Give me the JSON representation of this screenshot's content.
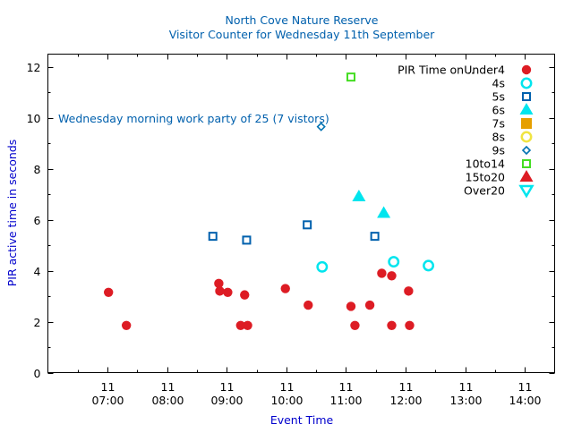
{
  "chart_data": {
    "type": "scatter",
    "title": "North Cove Nature Reserve",
    "subtitle": "Visitor Counter for Wednesday 11th September",
    "xlabel": "Event Time",
    "ylabel": "PIR active time in seconds",
    "annotation": "Wednesday morning work party of 25 (7 vistors)",
    "legend_title": "PIR Time on .. ",
    "legend_position": "top-right",
    "grid": false,
    "xlim": [
      "06:00",
      "14:30"
    ],
    "ylim": [
      0,
      12.5
    ],
    "x_ticks": [
      {
        "day": "11",
        "time": "07:00"
      },
      {
        "day": "11",
        "time": "08:00"
      },
      {
        "day": "11",
        "time": "09:00"
      },
      {
        "day": "11",
        "time": "10:00"
      },
      {
        "day": "11",
        "time": "11:00"
      },
      {
        "day": "11",
        "time": "12:00"
      },
      {
        "day": "11",
        "time": "13:00"
      },
      {
        "day": "11",
        "time": "14:00"
      }
    ],
    "y_ticks": [
      0,
      2,
      4,
      6,
      8,
      10,
      12
    ],
    "series": [
      {
        "name": "Under4",
        "marker": "circle-filled",
        "color": "#dd1c24",
        "points": [
          [
            "07:01",
            3.15
          ],
          [
            "07:19",
            1.85
          ],
          [
            "08:52",
            3.5
          ],
          [
            "08:53",
            3.2
          ],
          [
            "09:01",
            3.15
          ],
          [
            "09:14",
            1.85
          ],
          [
            "09:18",
            3.05
          ],
          [
            "09:21",
            1.85
          ],
          [
            "09:59",
            3.3
          ],
          [
            "10:22",
            2.65
          ],
          [
            "11:05",
            2.6
          ],
          [
            "11:09",
            1.85
          ],
          [
            "11:24",
            2.65
          ],
          [
            "11:36",
            3.9
          ],
          [
            "11:46",
            1.85
          ],
          [
            "11:46",
            3.8
          ],
          [
            "12:03",
            3.2
          ],
          [
            "12:04",
            1.85
          ]
        ]
      },
      {
        "name": "4s",
        "marker": "circle-open",
        "color": "#00e5ee",
        "points": [
          [
            "10:36",
            4.15
          ],
          [
            "11:48",
            4.35
          ],
          [
            "12:23",
            4.2
          ]
        ]
      },
      {
        "name": "5s",
        "marker": "square-open",
        "color": "#0060ad",
        "points": [
          [
            "08:46",
            5.35
          ],
          [
            "09:20",
            5.2
          ],
          [
            "10:21",
            5.8
          ],
          [
            "11:29",
            5.35
          ]
        ]
      },
      {
        "name": "6s",
        "marker": "triangle-filled",
        "color": "#00e5ee",
        "points": [
          [
            "11:13",
            6.9
          ],
          [
            "11:38",
            6.25
          ]
        ]
      },
      {
        "name": "7s",
        "marker": "square-filled",
        "color": "#e69f00",
        "points": []
      },
      {
        "name": "8s",
        "marker": "circle-open",
        "color": "#f0e442",
        "points": []
      },
      {
        "name": "9s",
        "marker": "diamond-open",
        "color": "#0072b2",
        "points": [
          [
            "10:35",
            9.65
          ]
        ]
      },
      {
        "name": "10to14",
        "marker": "square-open",
        "color": "#44dd22",
        "points": [
          [
            "11:05",
            11.6
          ]
        ]
      },
      {
        "name": "15to20",
        "marker": "triangle-filled",
        "color": "#dd1c24",
        "points": []
      },
      {
        "name": "Over20",
        "marker": "triangle-down-open",
        "color": "#00e5ee",
        "points": []
      }
    ]
  },
  "colors": {
    "title": "#0060ad",
    "axis_label": "#0000cc",
    "annotation": "#0060ad",
    "axis": "#000000"
  }
}
